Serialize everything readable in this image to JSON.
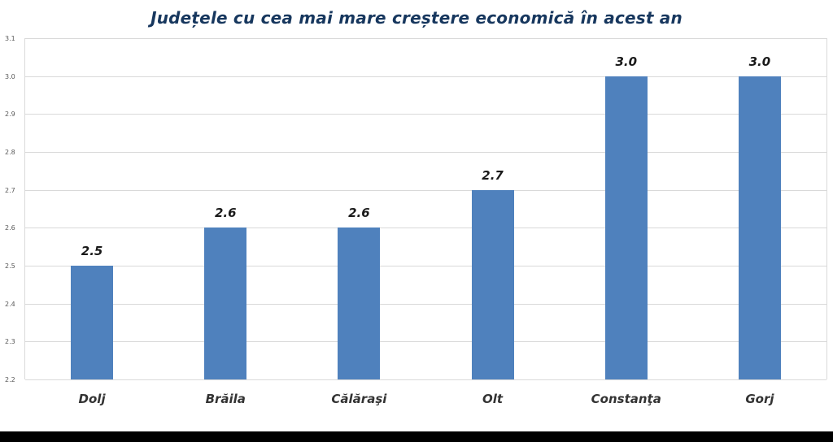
{
  "chart_data": {
    "type": "bar",
    "title": "Județele cu cea mai mare creștere economică în acest an",
    "categories": [
      "Dolj",
      "Brăila",
      "Călăraşi",
      "Olt",
      "Constanţa",
      "Gorj"
    ],
    "values": [
      2.5,
      2.6,
      2.6,
      2.7,
      3.0,
      3.0
    ],
    "data_labels": [
      "2.5",
      "2.6",
      "2.6",
      "2.7",
      "3.0",
      "3.0"
    ],
    "xlabel": "",
    "ylabel": "",
    "ylim": [
      2.2,
      3.1
    ],
    "yticks": [
      2.2,
      2.3,
      2.4,
      2.5,
      2.6,
      2.7,
      2.8,
      2.9,
      3.0,
      3.1
    ],
    "grid": true,
    "legend_position": "none",
    "bar_color": "#4F81BD",
    "title_color": "#17375E",
    "gridline_color": "#D9D9D9"
  }
}
